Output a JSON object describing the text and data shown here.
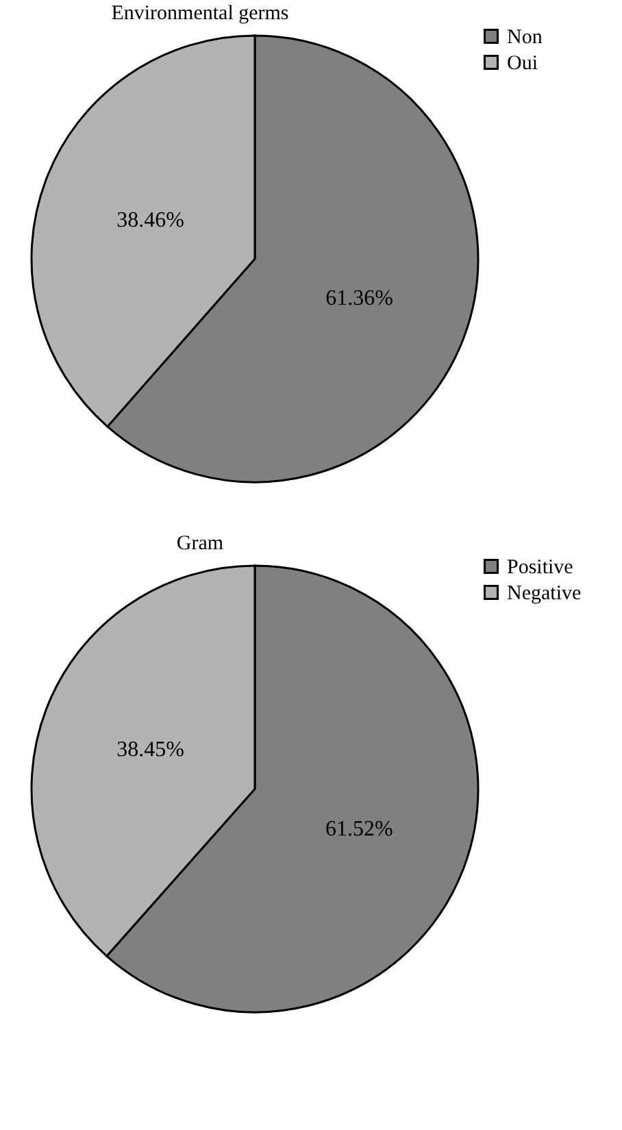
{
  "chart_data": [
    {
      "type": "pie",
      "title": "Environmental germs",
      "categories": [
        "Non",
        "Oui"
      ],
      "values": [
        61.36,
        38.46
      ],
      "colors": [
        "#808080",
        "#b3b3b3"
      ],
      "value_labels": [
        "61.36%",
        "38.46%"
      ],
      "legend": "top right"
    },
    {
      "type": "pie",
      "title": "Gram",
      "categories": [
        "Positive",
        "Negative"
      ],
      "values": [
        61.52,
        38.45
      ],
      "colors": [
        "#808080",
        "#b3b3b3"
      ],
      "value_labels": [
        "61.52%",
        "38.45%"
      ],
      "legend": "top right"
    }
  ]
}
